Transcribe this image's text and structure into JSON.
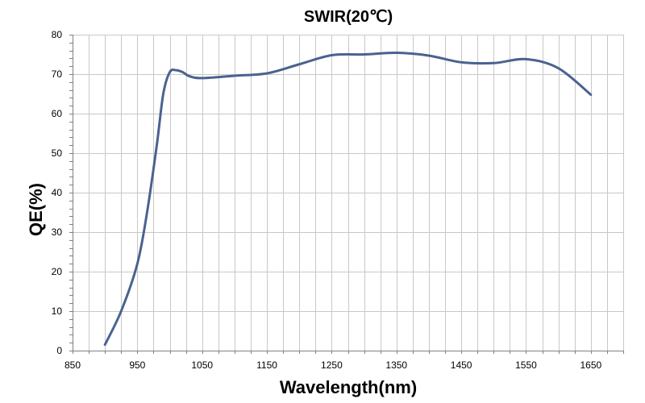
{
  "chart_data": {
    "type": "line",
    "title": "SWIR(20℃)",
    "xlabel": "Wavelength(nm)",
    "ylabel": "QE(%)",
    "xlim": [
      850,
      1700
    ],
    "ylim": [
      0,
      80
    ],
    "x_ticks": [
      850,
      950,
      1050,
      1150,
      1250,
      1350,
      1450,
      1550,
      1650
    ],
    "y_ticks": [
      0,
      10,
      20,
      30,
      40,
      50,
      60,
      70,
      80
    ],
    "grid": true,
    "legend": "none",
    "series": [
      {
        "color": "#4a6290",
        "x": [
          900,
          925,
          950,
          965,
          980,
          990,
          1000,
          1010,
          1020,
          1030,
          1050,
          1100,
          1150,
          1200,
          1250,
          1300,
          1350,
          1400,
          1450,
          1500,
          1550,
          1600,
          1650
        ],
        "y": [
          1.5,
          10,
          22,
          35,
          52,
          65,
          70.5,
          71,
          70.5,
          69.5,
          69,
          69.6,
          70.2,
          72.5,
          74.8,
          75.0,
          75.4,
          74.7,
          73.0,
          72.8,
          73.8,
          71.5,
          64.8
        ]
      }
    ]
  }
}
